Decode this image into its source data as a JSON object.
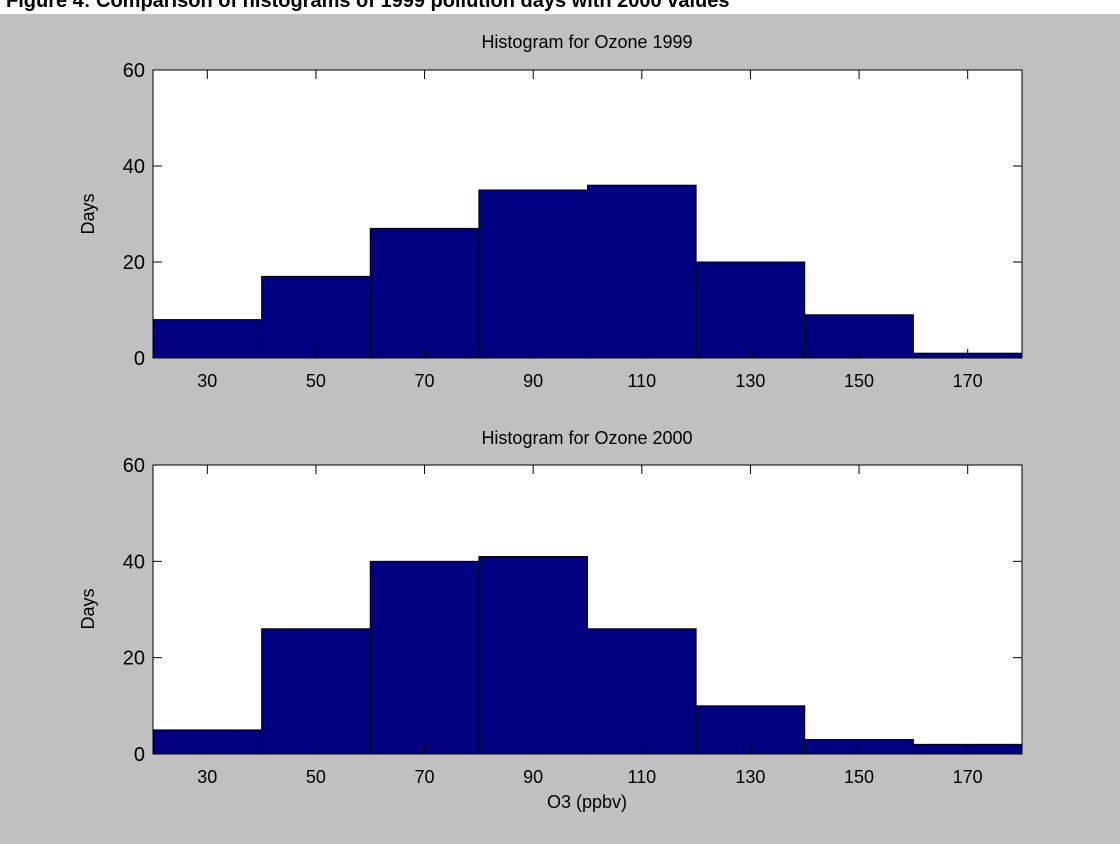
{
  "caption": "Figure 4: Comparison of histograms of 1999 pollution days with 2000 values",
  "chart_data": [
    {
      "type": "bar",
      "title": "Histogram for Ozone 1999",
      "xlabel": "",
      "ylabel": "Days",
      "bin_edges": [
        20,
        40,
        60,
        80,
        100,
        120,
        140,
        160,
        180
      ],
      "values": [
        8,
        17,
        27,
        35,
        36,
        20,
        9,
        1
      ],
      "xlim": [
        20,
        180
      ],
      "ylim": [
        0,
        60
      ],
      "xticks": [
        30,
        50,
        70,
        90,
        110,
        130,
        150,
        170
      ],
      "yticks": [
        0,
        20,
        40,
        60
      ],
      "bar_color": "#000080",
      "grid": false
    },
    {
      "type": "bar",
      "title": "Histogram for Ozone 2000",
      "xlabel": "O3 (ppbv)",
      "ylabel": "Days",
      "bin_edges": [
        20,
        40,
        60,
        80,
        100,
        120,
        140,
        160,
        180
      ],
      "values": [
        5,
        26,
        40,
        41,
        26,
        10,
        3,
        2
      ],
      "xlim": [
        20,
        180
      ],
      "ylim": [
        0,
        60
      ],
      "xticks": [
        30,
        50,
        70,
        90,
        110,
        130,
        150,
        170
      ],
      "yticks": [
        0,
        20,
        40,
        60
      ],
      "bar_color": "#000080",
      "grid": false
    }
  ]
}
